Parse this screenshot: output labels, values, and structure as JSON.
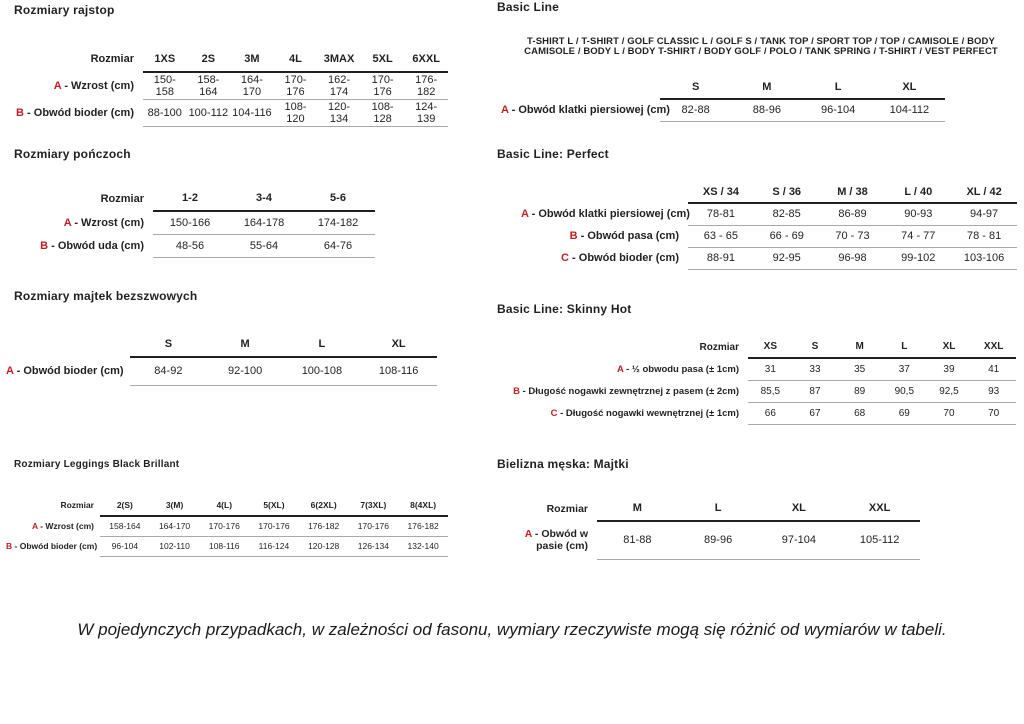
{
  "colors": {
    "accent": "#bf2026",
    "ink": "#231f20",
    "rule": "#a7a9ab"
  },
  "sections": {
    "rajstop": {
      "title": "Rozmiary rajstop",
      "corner_label": "Rozmiar",
      "columns": [
        "1XS",
        "2S",
        "3M",
        "4L",
        "3MAX",
        "5XL",
        "6XXL"
      ],
      "rows": [
        {
          "letter": "A",
          "label": "- Wzrost (cm)",
          "values": [
            "150-158",
            "158-164",
            "164-170",
            "170-176",
            "162-174",
            "170-176",
            "176-182"
          ]
        },
        {
          "letter": "B",
          "label": "- Obwód bioder (cm)",
          "values": [
            "88-100",
            "100-112",
            "104-116",
            "108-120",
            "120-134",
            "108-128",
            "124-139"
          ]
        }
      ]
    },
    "ponczochy": {
      "title": "Rozmiary pończoch",
      "corner_label": "Rozmiar",
      "columns": [
        "1-2",
        "3-4",
        "5-6"
      ],
      "rows": [
        {
          "letter": "A",
          "label": "- Wzrost (cm)",
          "values": [
            "150-166",
            "164-178",
            "174-182"
          ]
        },
        {
          "letter": "B",
          "label": "- Obwód uda (cm)",
          "values": [
            "48-56",
            "55-64",
            "64-76"
          ]
        }
      ]
    },
    "majtek_bezszwowych": {
      "title": "Rozmiary majtek bezszwowych",
      "corner_label": "",
      "columns": [
        "S",
        "M",
        "L",
        "XL"
      ],
      "rows": [
        {
          "letter": "A",
          "label": "- Obwód bioder (cm)",
          "values": [
            "84-92",
            "92-100",
            "100-108",
            "108-116"
          ]
        }
      ]
    },
    "leggings": {
      "title": "Rozmiary Leggings Black Brillant",
      "corner_label": "Rozmiar",
      "columns": [
        "2(S)",
        "3(M)",
        "4(L)",
        "5(XL)",
        "6(2XL)",
        "7(3XL)",
        "8(4XL)"
      ],
      "rows": [
        {
          "letter": "A",
          "label": "- Wzrost (cm)",
          "values": [
            "158-164",
            "164-170",
            "170-176",
            "170-176",
            "176-182",
            "170-176",
            "176-182"
          ]
        },
        {
          "letter": "B",
          "label": "- Obwód bioder (cm)",
          "values": [
            "96-104",
            "102-110",
            "108-116",
            "116-124",
            "120-128",
            "126-134",
            "132-140"
          ]
        }
      ]
    },
    "basic_line": {
      "title": "Basic Line",
      "description": "T-SHIRT L / T-SHIRT / GOLF CLASSIC L / GOLF S / TANK TOP / SPORT TOP / TOP / CAMISOLE / BODY CAMISOLE / BODY L / BODY T-SHIRT / BODY GOLF / POLO / TANK SPRING / T-SHIRT / VEST PERFECT",
      "corner_label": "",
      "columns": [
        "S",
        "M",
        "L",
        "XL"
      ],
      "rows": [
        {
          "letter": "A",
          "label": "- Obwód klatki piersiowej (cm)",
          "values": [
            "82-88",
            "88-96",
            "96-104",
            "104-112"
          ]
        }
      ]
    },
    "perfect": {
      "title": "Basic Line: Perfect",
      "corner_label": "",
      "columns": [
        "XS / 34",
        "S / 36",
        "M / 38",
        "L / 40",
        "XL / 42"
      ],
      "rows": [
        {
          "letter": "A",
          "label": "- Obwód klatki piersiowej (cm)",
          "values": [
            "78-81",
            "82-85",
            "86-89",
            "90-93",
            "94-97"
          ]
        },
        {
          "letter": "B",
          "label": "- Obwód pasa (cm)",
          "values": [
            "63 - 65",
            "66 - 69",
            "70 - 73",
            "74 - 77",
            "78 - 81"
          ]
        },
        {
          "letter": "C",
          "label": "- Obwód bioder (cm)",
          "values": [
            "88-91",
            "92-95",
            "96-98",
            "99-102",
            "103-106"
          ]
        }
      ]
    },
    "skinny_hot": {
      "title": "Basic Line: Skinny Hot",
      "corner_label": "Rozmiar",
      "columns": [
        "XS",
        "S",
        "M",
        "L",
        "XL",
        "XXL"
      ],
      "rows": [
        {
          "letter": "A",
          "label": "- ½ obwodu pasa (± 1cm)",
          "values": [
            "31",
            "33",
            "35",
            "37",
            "39",
            "41"
          ]
        },
        {
          "letter": "B",
          "label": "- Długość nogawki zewnętrznej z pasem (± 2cm)",
          "values": [
            "85,5",
            "87",
            "89",
            "90,5",
            "92,5",
            "93"
          ]
        },
        {
          "letter": "C",
          "label": "- Długość nogawki wewnętrznej (± 1cm)",
          "values": [
            "66",
            "67",
            "68",
            "69",
            "70",
            "70"
          ]
        }
      ]
    },
    "majtki_meskie": {
      "title": "Bielizna męska: Majtki",
      "corner_label": "Rozmiar",
      "columns": [
        "M",
        "L",
        "XL",
        "XXL"
      ],
      "rows": [
        {
          "letter": "A",
          "label": "- Obwód w pasie (cm)",
          "values": [
            "81-88",
            "89-96",
            "97-104",
            "105-112"
          ]
        }
      ]
    }
  },
  "footer": {
    "note": "W pojedynczych przypadkach, w zależności od fasonu, wymiary rzeczywiste mogą się różnić od wymiarów w tabeli."
  }
}
